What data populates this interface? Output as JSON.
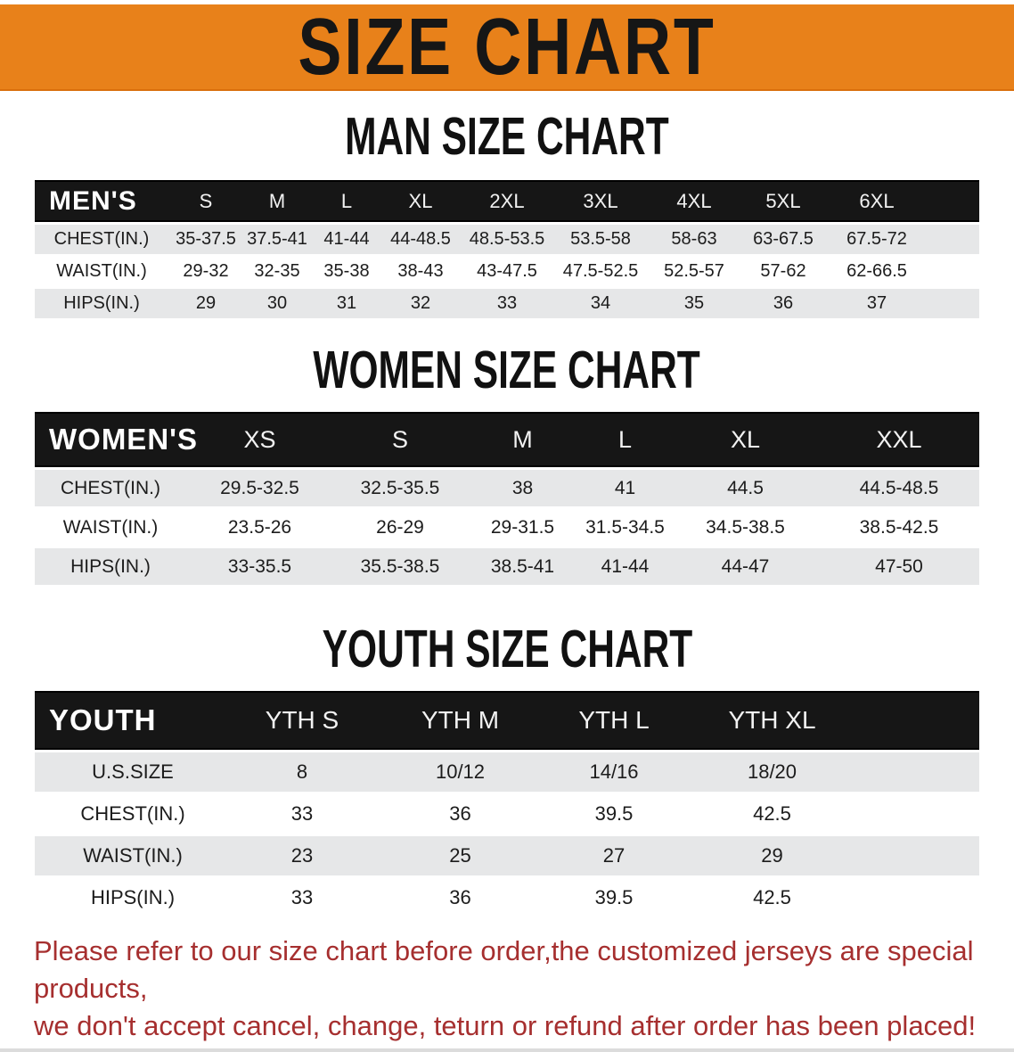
{
  "banner": {
    "title": "SIZE CHART"
  },
  "colors": {
    "banner_orange": "#e8811a",
    "header_black": "#161616",
    "row_gray": "#e6e7e8",
    "disclaimer_red": "#a62f2f"
  },
  "men": {
    "heading": "MAN SIZE CHART",
    "label": "MEN'S",
    "sizes": [
      "S",
      "M",
      "L",
      "XL",
      "2XL",
      "3XL",
      "4XL",
      "5XL",
      "6XL"
    ],
    "rows": [
      {
        "label": "CHEST(IN.)",
        "values": [
          "35-37.5",
          "37.5-41",
          "41-44",
          "44-48.5",
          "48.5-53.5",
          "53.5-58",
          "58-63",
          "63-67.5",
          "67.5-72"
        ]
      },
      {
        "label": "WAIST(IN.)",
        "values": [
          "29-32",
          "32-35",
          "35-38",
          "38-43",
          "43-47.5",
          "47.5-52.5",
          "52.5-57",
          "57-62",
          "62-66.5"
        ]
      },
      {
        "label": "HIPS(IN.)",
        "values": [
          "29",
          "30",
          "31",
          "32",
          "33",
          "34",
          "35",
          "36",
          "37"
        ]
      }
    ]
  },
  "women": {
    "heading": "WOMEN SIZE CHART",
    "label": "WOMEN'S",
    "sizes": [
      "XS",
      "S",
      "M",
      "L",
      "XL",
      "XXL"
    ],
    "rows": [
      {
        "label": "CHEST(IN.)",
        "values": [
          "29.5-32.5",
          "32.5-35.5",
          "38",
          "41",
          "44.5",
          "44.5-48.5"
        ]
      },
      {
        "label": "WAIST(IN.)",
        "values": [
          "23.5-26",
          "26-29",
          "29-31.5",
          "31.5-34.5",
          "34.5-38.5",
          "38.5-42.5"
        ]
      },
      {
        "label": "HIPS(IN.)",
        "values": [
          "33-35.5",
          "35.5-38.5",
          "38.5-41",
          "41-44",
          "44-47",
          "47-50"
        ]
      }
    ]
  },
  "youth": {
    "heading": "YOUTH SIZE CHART",
    "label": "YOUTH",
    "sizes": [
      "YTH S",
      "YTH M",
      "YTH L",
      "YTH XL"
    ],
    "rows": [
      {
        "label": "U.S.SIZE",
        "values": [
          "8",
          "10/12",
          "14/16",
          "18/20"
        ]
      },
      {
        "label": "CHEST(IN.)",
        "values": [
          "33",
          "36",
          "39.5",
          "42.5"
        ]
      },
      {
        "label": "WAIST(IN.)",
        "values": [
          "23",
          "25",
          "27",
          "29"
        ]
      },
      {
        "label": "HIPS(IN.)",
        "values": [
          "33",
          "36",
          "39.5",
          "42.5"
        ]
      }
    ]
  },
  "disclaimer": {
    "line1": "Please refer to our size chart before order,the customized jerseys are special products,",
    "line2": "we don't accept cancel, change, teturn or refund after order has been placed!"
  }
}
